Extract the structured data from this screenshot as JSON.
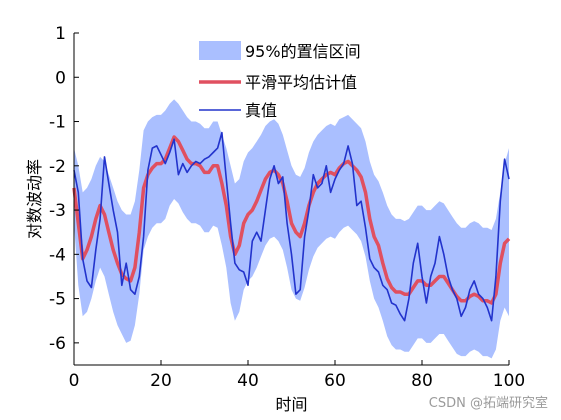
{
  "chart_data": {
    "type": "line",
    "xlabel": "时间",
    "ylabel": "对数波动率",
    "xlim": [
      0,
      100
    ],
    "ylim": [
      -6.5,
      1
    ],
    "xticks": [
      0,
      20,
      40,
      60,
      80,
      100
    ],
    "yticks": [
      1,
      0,
      -1,
      -2,
      -3,
      -4,
      -5,
      -6
    ],
    "grid": false,
    "legend_placement": "top-center",
    "colors": {
      "band": "#aabfff",
      "smooth": "#e05060",
      "true": "#2233cc"
    },
    "legend": {
      "band": "95%的置信区间",
      "smooth": "平滑平均估计值",
      "true": "真值"
    },
    "x": [
      0,
      1,
      2,
      3,
      4,
      5,
      6,
      7,
      8,
      9,
      10,
      11,
      12,
      13,
      14,
      15,
      16,
      17,
      18,
      19,
      20,
      21,
      22,
      23,
      24,
      25,
      26,
      27,
      28,
      29,
      30,
      31,
      32,
      33,
      34,
      35,
      36,
      37,
      38,
      39,
      40,
      41,
      42,
      43,
      44,
      45,
      46,
      47,
      48,
      49,
      50,
      51,
      52,
      53,
      54,
      55,
      56,
      57,
      58,
      59,
      60,
      61,
      62,
      63,
      64,
      65,
      66,
      67,
      68,
      69,
      70,
      71,
      72,
      73,
      74,
      75,
      76,
      77,
      78,
      79,
      80,
      81,
      82,
      83,
      84,
      85,
      86,
      87,
      88,
      89,
      90,
      91,
      92,
      93,
      94,
      95,
      96,
      97,
      98,
      99,
      100
    ],
    "series": [
      {
        "key": "true",
        "values": [
          -2.1,
          -2.6,
          -4.1,
          -4.6,
          -4.75,
          -3.9,
          -3.2,
          -1.8,
          -2.4,
          -3.0,
          -3.5,
          -4.7,
          -4.2,
          -4.8,
          -4.9,
          -4.5,
          -3.6,
          -2.1,
          -1.6,
          -1.55,
          -1.75,
          -1.95,
          -1.7,
          -1.4,
          -2.2,
          -1.95,
          -2.15,
          -2.0,
          -1.9,
          -1.95,
          -1.85,
          -1.8,
          -1.7,
          -1.6,
          -1.25,
          -2.3,
          -3.3,
          -4.2,
          -4.35,
          -4.4,
          -4.7,
          -3.7,
          -3.5,
          -3.7,
          -3.0,
          -2.3,
          -2.0,
          -2.4,
          -2.25,
          -3.3,
          -4.0,
          -4.9,
          -4.8,
          -3.6,
          -3.0,
          -2.2,
          -2.5,
          -2.4,
          -2.0,
          -2.6,
          -2.3,
          -2.1,
          -1.95,
          -1.55,
          -1.95,
          -2.9,
          -2.8,
          -3.4,
          -4.1,
          -4.3,
          -4.4,
          -4.7,
          -4.8,
          -5.1,
          -5.15,
          -5.35,
          -5.5,
          -5.0,
          -4.2,
          -3.75,
          -4.5,
          -5.1,
          -4.5,
          -4.2,
          -3.6,
          -4.0,
          -4.5,
          -4.8,
          -5.0,
          -5.4,
          -5.2,
          -4.8,
          -4.6,
          -4.9,
          -5.0,
          -5.2,
          -5.5,
          -4.5,
          -2.8,
          -1.85,
          -2.3
        ]
      },
      {
        "key": "smooth",
        "values": [
          -2.5,
          -3.3,
          -4.1,
          -3.9,
          -3.6,
          -3.2,
          -2.9,
          -3.1,
          -3.5,
          -3.9,
          -4.2,
          -4.45,
          -4.55,
          -4.6,
          -4.3,
          -3.5,
          -2.5,
          -2.2,
          -2.05,
          -1.95,
          -1.95,
          -1.85,
          -1.6,
          -1.35,
          -1.45,
          -1.65,
          -1.85,
          -1.95,
          -1.95,
          -2.0,
          -2.15,
          -2.15,
          -2.0,
          -2.0,
          -2.4,
          -2.9,
          -3.6,
          -4.0,
          -3.8,
          -3.3,
          -3.1,
          -3.0,
          -2.8,
          -2.55,
          -2.3,
          -2.15,
          -2.1,
          -2.2,
          -2.4,
          -2.8,
          -3.3,
          -3.5,
          -3.6,
          -3.3,
          -2.9,
          -2.6,
          -2.4,
          -2.3,
          -2.2,
          -2.15,
          -2.2,
          -2.05,
          -1.95,
          -1.9,
          -2.0,
          -2.1,
          -2.25,
          -2.6,
          -3.2,
          -3.6,
          -3.8,
          -4.2,
          -4.55,
          -4.75,
          -4.85,
          -4.85,
          -4.9,
          -4.9,
          -4.75,
          -4.6,
          -4.6,
          -4.7,
          -4.7,
          -4.6,
          -4.5,
          -4.5,
          -4.65,
          -4.8,
          -4.95,
          -5.05,
          -5.05,
          -4.95,
          -4.9,
          -4.95,
          -5.05,
          -5.05,
          -5.1,
          -4.9,
          -4.2,
          -3.75,
          -3.65
        ]
      }
    ],
    "band_upper": [
      -1.6,
      -2.0,
      -2.6,
      -2.5,
      -2.3,
      -2.0,
      -1.8,
      -1.9,
      -2.2,
      -2.5,
      -2.8,
      -3.0,
      -3.1,
      -3.1,
      -2.8,
      -2.1,
      -1.2,
      -1.0,
      -0.9,
      -0.85,
      -0.85,
      -0.75,
      -0.6,
      -0.5,
      -0.6,
      -0.75,
      -0.9,
      -1.0,
      -1.0,
      -1.05,
      -1.15,
      -1.15,
      -1.0,
      -1.0,
      -1.3,
      -1.6,
      -2.0,
      -2.4,
      -2.3,
      -1.9,
      -1.7,
      -1.6,
      -1.45,
      -1.3,
      -1.1,
      -1.0,
      -0.95,
      -1.05,
      -1.3,
      -1.65,
      -2.0,
      -2.2,
      -2.25,
      -2.05,
      -1.7,
      -1.45,
      -1.3,
      -1.2,
      -1.1,
      -1.05,
      -1.1,
      -0.95,
      -0.9,
      -0.85,
      -0.95,
      -1.05,
      -1.15,
      -1.45,
      -1.9,
      -2.2,
      -2.35,
      -2.6,
      -2.9,
      -3.1,
      -3.2,
      -3.2,
      -3.25,
      -3.2,
      -3.05,
      -2.9,
      -2.9,
      -3.0,
      -3.0,
      -2.9,
      -2.8,
      -2.85,
      -3.0,
      -3.15,
      -3.3,
      -3.4,
      -3.4,
      -3.3,
      -3.25,
      -3.3,
      -3.4,
      -3.4,
      -3.45,
      -3.2,
      -2.6,
      -1.95,
      -1.6
    ],
    "band_lower": [
      -3.3,
      -4.7,
      -5.4,
      -5.3,
      -5.0,
      -4.6,
      -4.3,
      -4.5,
      -4.9,
      -5.3,
      -5.6,
      -5.8,
      -6.0,
      -5.95,
      -5.6,
      -4.9,
      -3.9,
      -3.6,
      -3.4,
      -3.3,
      -3.3,
      -3.2,
      -2.9,
      -2.75,
      -2.85,
      -3.05,
      -3.2,
      -3.3,
      -3.3,
      -3.35,
      -3.5,
      -3.5,
      -3.35,
      -3.4,
      -3.8,
      -4.3,
      -5.1,
      -5.5,
      -5.3,
      -4.8,
      -4.6,
      -4.5,
      -4.3,
      -4.05,
      -3.8,
      -3.65,
      -3.6,
      -3.7,
      -3.9,
      -4.3,
      -4.8,
      -5.0,
      -5.05,
      -4.75,
      -4.35,
      -4.05,
      -3.85,
      -3.75,
      -3.65,
      -3.6,
      -3.65,
      -3.5,
      -3.4,
      -3.35,
      -3.45,
      -3.55,
      -3.7,
      -4.05,
      -4.6,
      -5.0,
      -5.2,
      -5.5,
      -5.85,
      -6.05,
      -6.15,
      -6.15,
      -6.2,
      -6.2,
      -6.05,
      -5.9,
      -5.9,
      -6.0,
      -6.0,
      -5.9,
      -5.8,
      -5.8,
      -5.95,
      -6.1,
      -6.25,
      -6.3,
      -6.3,
      -6.2,
      -6.15,
      -6.2,
      -6.3,
      -6.3,
      -6.35,
      -6.15,
      -5.5,
      -5.2,
      -5.4
    ]
  },
  "watermark": "CSDN @拓端研究室"
}
